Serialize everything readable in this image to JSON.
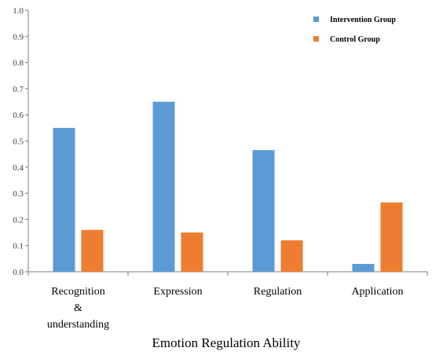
{
  "chart_data": {
    "type": "bar",
    "categories": [
      [
        "Recognition",
        "&",
        "understanding"
      ],
      [
        "Expression"
      ],
      [
        "Regulation"
      ],
      [
        "Application"
      ]
    ],
    "series": [
      {
        "name": "Intervention Group",
        "color": "#5B9BD5",
        "values": [
          0.55,
          0.65,
          0.465,
          0.03
        ]
      },
      {
        "name": "Control Group",
        "color": "#ED7D31",
        "values": [
          0.16,
          0.15,
          0.12,
          0.265
        ]
      }
    ],
    "xlabel": "Emotion Regulation Ability",
    "ylabel": "",
    "ylim": [
      0,
      1.0
    ],
    "yticks": [
      "0.0",
      "0.1",
      "0.2",
      "0.3",
      "0.4",
      "0.5",
      "0.6",
      "0.7",
      "0.8",
      "0.9",
      "1.0"
    ],
    "grid": false,
    "legend_position": "top-right"
  }
}
